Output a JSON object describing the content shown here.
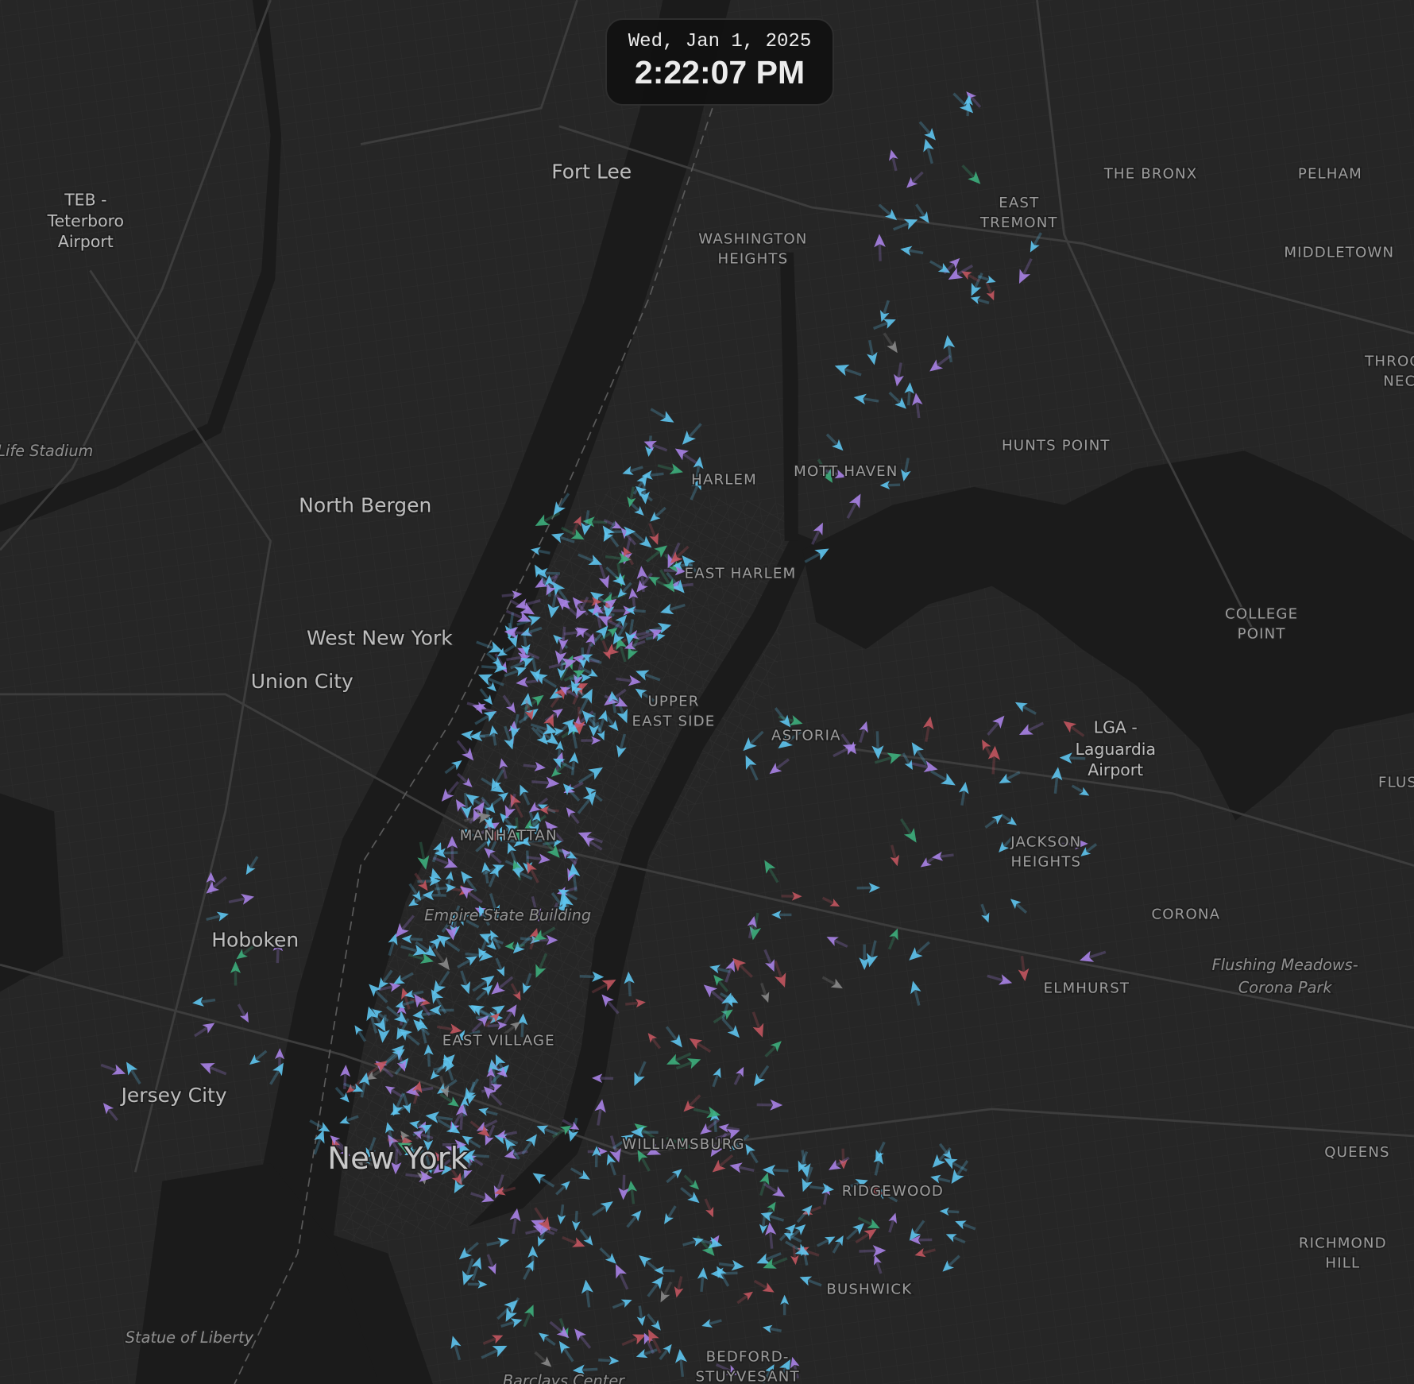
{
  "clock": {
    "date": "Wed, Jan 1, 2025",
    "time": "2:22:07 PM"
  },
  "map": {
    "theme": "dark",
    "colors": {
      "land": "#262626",
      "water": "#1b1b1b",
      "road": "#363636",
      "major_road": "#404040"
    },
    "vehicle_colors": [
      "#5ec4ee",
      "#a982e6",
      "#c2555f",
      "#3dae7c",
      "#8a8a8a"
    ],
    "labels": {
      "fort_lee": "Fort Lee",
      "teb": [
        "TEB -",
        "Teterboro",
        "Airport"
      ],
      "stadium": "Life Stadium",
      "north_bergen": "North Bergen",
      "west_new_york": "West New York",
      "union_city": "Union City",
      "hoboken": "Hoboken",
      "jersey_city": "Jersey City",
      "new_york": "New York",
      "statue": "Statue of Liberty",
      "barclays": "Barclays Center",
      "washington_heights": [
        "WASHINGTON",
        "HEIGHTS"
      ],
      "harlem": "HARLEM",
      "mott_haven": "MOTT HAVEN",
      "east_harlem": "EAST HARLEM",
      "upper_east_side": [
        "UPPER",
        "EAST SIDE"
      ],
      "astoria": "ASTORIA",
      "manhattan": "MANHATTAN",
      "empire_state": "Empire State Building",
      "east_village": "EAST VILLAGE",
      "williamsburg": "WILLIAMSBURG",
      "ridgewood": "RIDGEWOOD",
      "bushwick": "BUSHWICK",
      "bed_stuy": [
        "BEDFORD-",
        "STUYVESANT"
      ],
      "the_bronx": "THE BRONX",
      "east_tremont": [
        "EAST",
        "TREMONT"
      ],
      "pelham": "PELHAM",
      "middletown": "MIDDLETOWN",
      "throgs_neck": [
        "THROG",
        "NEC"
      ],
      "hunts_point": "HUNTS POINT",
      "college_point": [
        "COLLEGE",
        "POINT"
      ],
      "lga": [
        "LGA -",
        "Laguardia",
        "Airport"
      ],
      "flushing": "FLUS",
      "jackson_heights": [
        "JACKSON",
        "HEIGHTS"
      ],
      "corona": "CORONA",
      "elmhurst": "ELMHURST",
      "flushing_meadows": [
        "Flushing Meadows-",
        "Corona Park"
      ],
      "queens": "QUEENS",
      "richmond_hill": [
        "RICHMOND",
        "HILL"
      ]
    }
  }
}
